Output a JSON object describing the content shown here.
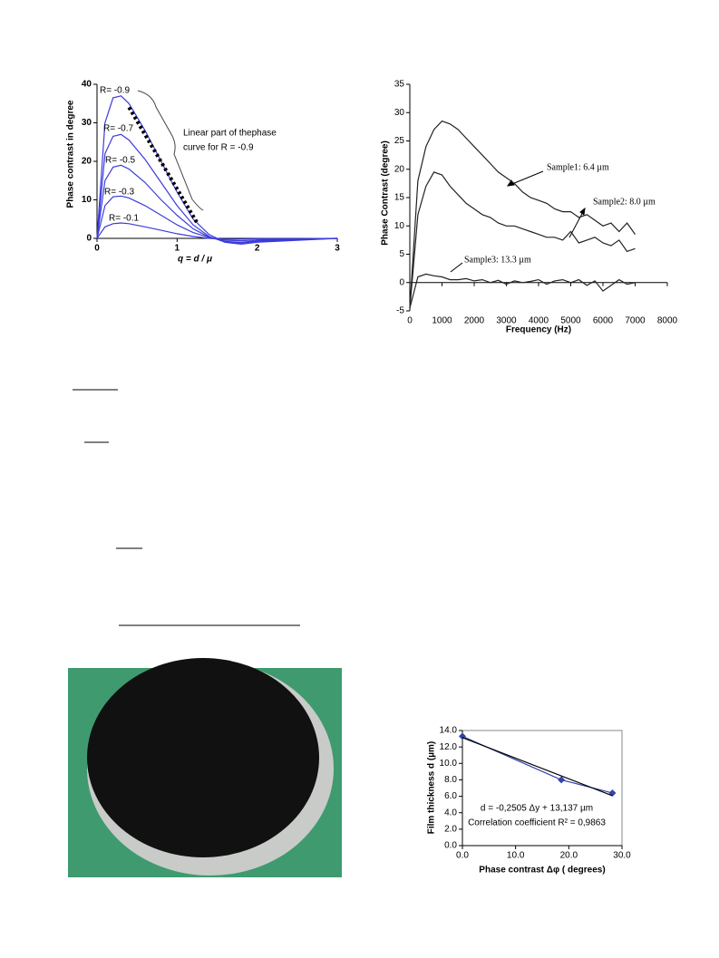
{
  "chart_data": [
    {
      "type": "line",
      "x_label": "q = d / μ",
      "y_label": "Phase contrast in degree",
      "annotations": [
        "Linear part of thephase",
        "curve for R = -0.9"
      ],
      "x": [
        0,
        0.1,
        0.2,
        0.3,
        0.4,
        0.6,
        0.8,
        1.0,
        1.2,
        1.4,
        1.6,
        1.8,
        2.0,
        2.5,
        3.0
      ],
      "xlim": [
        0,
        3
      ],
      "xticks": [
        0,
        1,
        2,
        3
      ],
      "ylim": [
        0,
        40
      ],
      "yticks": [
        0,
        10,
        20,
        30,
        40
      ],
      "series": [
        {
          "name": "R= -0.9",
          "color": "#3b3bdb",
          "values": [
            0,
            30,
            36.5,
            37,
            35,
            28,
            20,
            12,
            5,
            1,
            -1,
            -1.5,
            -1,
            -0.5,
            0
          ]
        },
        {
          "name": "R= -0.7",
          "color": "#3b3bdb",
          "values": [
            0,
            22,
            26.5,
            27,
            25.5,
            20.5,
            14.5,
            8.5,
            3.5,
            0.5,
            -1,
            -1.2,
            -0.8,
            -0.4,
            0
          ]
        },
        {
          "name": "R= -0.5",
          "color": "#3b3bdb",
          "values": [
            0,
            15,
            18.5,
            19,
            18,
            14.5,
            10,
            6,
            2.5,
            0.3,
            -0.8,
            -1,
            -0.6,
            -0.3,
            0
          ]
        },
        {
          "name": "R= -0.3",
          "color": "#3b3bdb",
          "values": [
            0,
            8.5,
            10.8,
            11,
            10.5,
            8.5,
            6,
            3.5,
            1.5,
            0.2,
            -0.5,
            -0.6,
            -0.4,
            -0.2,
            0
          ]
        },
        {
          "name": "R= -0.1",
          "color": "#3b3bdb",
          "values": [
            0,
            3,
            3.8,
            4,
            3.8,
            3,
            2.1,
            1.2,
            0.5,
            0,
            -0.2,
            -0.2,
            -0.1,
            -0.1,
            0
          ]
        },
        {
          "color": "#000000",
          "dash": "dotted",
          "x_values": [
            0.4,
            1.25
          ],
          "values": [
            34,
            4
          ]
        }
      ]
    },
    {
      "type": "line",
      "x_label": "Frequency (Hz)",
      "y_label": "Phase Contrast (degree)",
      "x": [
        0,
        250,
        500,
        750,
        1000,
        1250,
        1500,
        1750,
        2000,
        2250,
        2500,
        2750,
        3000,
        3250,
        3500,
        3750,
        4000,
        4250,
        4500,
        4750,
        5000,
        5250,
        5500,
        5750,
        6000,
        6250,
        6500,
        6750,
        7000
      ],
      "xlim": [
        0,
        8000
      ],
      "xticks": [
        0,
        1000,
        2000,
        3000,
        4000,
        5000,
        6000,
        7000,
        8000
      ],
      "ylim": [
        -5,
        35
      ],
      "yticks": [
        -5,
        0,
        5,
        10,
        15,
        20,
        25,
        30,
        35
      ],
      "series": [
        {
          "name": "Sample1: 6.4 µm",
          "color": "#222222",
          "values": [
            -4.5,
            18,
            24,
            27,
            28.5,
            28,
            27,
            25.5,
            24,
            22.5,
            21,
            19.5,
            18.5,
            17.5,
            16,
            15,
            14.5,
            14,
            13,
            12.5,
            12.5,
            11.5,
            12,
            11,
            10,
            10.5,
            9,
            10.5,
            8.5
          ]
        },
        {
          "name": "Sample2: 8.0 µm",
          "color": "#222222",
          "values": [
            -4.5,
            12,
            17,
            19.5,
            19,
            17,
            15.5,
            14,
            13,
            12,
            11.5,
            10.5,
            10,
            10,
            9.5,
            9,
            8.5,
            8,
            8,
            7.5,
            9,
            7,
            7.5,
            8,
            7,
            6.5,
            7.5,
            5.5,
            6
          ]
        },
        {
          "name": "Sample3: 13.3 µm",
          "color": "#222222",
          "values": [
            -4.5,
            1,
            1.5,
            1.2,
            1,
            0.5,
            0.5,
            0.7,
            0.3,
            0.5,
            0,
            0.4,
            -0.3,
            0.3,
            0,
            0.2,
            0.5,
            -0.3,
            0.3,
            0.5,
            0,
            0.5,
            -0.5,
            0.3,
            -1.5,
            -0.5,
            0.5,
            -0.3,
            0
          ]
        }
      ]
    },
    {
      "type": "line",
      "x_label": "Phase contrast Δφ ( degrees)",
      "y_label": "Film thickness d (µm)",
      "annotations": [
        "d = -0,2505 Δy + 13,137 µm",
        "Correlation coefficient R² = 0,9863"
      ],
      "xlim": [
        0,
        30
      ],
      "xticks": [
        {
          "value": 0,
          "label": "0.0"
        },
        {
          "value": 10,
          "label": "10.0"
        },
        {
          "value": 20,
          "label": "20.0"
        },
        {
          "value": 30,
          "label": "30.0"
        }
      ],
      "ylim": [
        0,
        14
      ],
      "yticks": [
        {
          "value": 0,
          "label": "0.0"
        },
        {
          "value": 2,
          "label": "2.0"
        },
        {
          "value": 4,
          "label": "4.0"
        },
        {
          "value": 6,
          "label": "6.0"
        },
        {
          "value": 8,
          "label": "8.0"
        },
        {
          "value": 10,
          "label": "10.0"
        },
        {
          "value": 12,
          "label": "12.0"
        },
        {
          "value": 14,
          "label": "14.0"
        }
      ],
      "series": [
        {
          "color": "#3344aa",
          "marker": "diamond",
          "x_values": [
            0,
            18.6,
            28.2
          ],
          "values": [
            13.3,
            8.0,
            6.4
          ]
        },
        {
          "color": "#000000",
          "x_values": [
            0,
            28.2
          ],
          "values": [
            13.137,
            6.073
          ]
        }
      ]
    }
  ]
}
